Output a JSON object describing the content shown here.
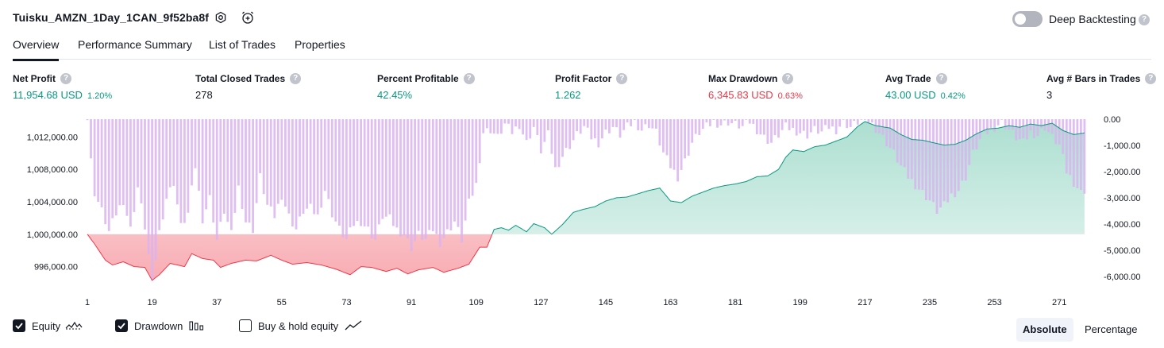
{
  "header": {
    "strategy_name": "Tuisku_AMZN_1Day_1CAN_9f52ba8f",
    "settings_icon": "gear-icon",
    "alert_icon": "alarm-clock-plus-icon",
    "deep_backtesting_label": "Deep Backtesting",
    "deep_backtesting_enabled": false,
    "help_glyph": "?"
  },
  "tabs": [
    {
      "label": "Overview",
      "active": true
    },
    {
      "label": "Performance Summary",
      "active": false
    },
    {
      "label": "List of Trades",
      "active": false
    },
    {
      "label": "Properties",
      "active": false
    }
  ],
  "stats": [
    {
      "label": "Net Profit",
      "value": "11,954.68 USD",
      "percent": "1.20%",
      "color": "#089981"
    },
    {
      "label": "Total Closed Trades",
      "value": "278",
      "percent": "",
      "color": "#131722"
    },
    {
      "label": "Percent Profitable",
      "value": "42.45%",
      "percent": "",
      "color": "#089981"
    },
    {
      "label": "Profit Factor",
      "value": "1.262",
      "percent": "",
      "color": "#089981"
    },
    {
      "label": "Max Drawdown",
      "value": "6,345.83 USD",
      "percent": "0.63%",
      "color": "#f23645"
    },
    {
      "label": "Avg Trade",
      "value": "43.00 USD",
      "percent": "0.42%",
      "color": "#089981"
    },
    {
      "label": "Avg # Bars in Trades",
      "value": "3",
      "percent": "",
      "color": "#131722"
    }
  ],
  "legend": {
    "equity": {
      "label": "Equity",
      "checked": true,
      "icon": "equity-line-icon"
    },
    "drawdown": {
      "label": "Drawdown",
      "checked": true,
      "icon": "drawdown-bars-icon"
    },
    "buy_hold": {
      "label": "Buy & hold equity",
      "checked": false,
      "icon": "trend-line-icon"
    }
  },
  "modes": {
    "absolute": "Absolute",
    "percentage": "Percentage",
    "selected": "absolute"
  },
  "colors": {
    "profit": "#089981",
    "loss": "#f23645",
    "drawdown_bar": "#d9b3f0",
    "equity_fill_top": "#b2e0d4",
    "loss_fill": "#f7b9be"
  },
  "chart_data": {
    "type": "area",
    "x_ticks": [
      "1",
      "19",
      "37",
      "55",
      "73",
      "91",
      "109",
      "127",
      "145",
      "163",
      "181",
      "199",
      "217",
      "235",
      "253",
      "271"
    ],
    "x_range": [
      1,
      280
    ],
    "left_axis": {
      "ticks": [
        "1,012,000.00",
        "1,008,000.00",
        "1,004,000.00",
        "1,000,000.00",
        "996,000.00"
      ],
      "tick_values": [
        1012000,
        1008000,
        1004000,
        1000000,
        996000
      ],
      "range": [
        993800,
        1014200
      ]
    },
    "right_axis": {
      "ticks": [
        "0.00",
        "-1,000.00",
        "-2,000.00",
        "-3,000.00",
        "-4,000.00",
        "-5,000.00",
        "-6,000.00"
      ],
      "tick_values": [
        0,
        -1000,
        -2000,
        -3000,
        -4000,
        -5000,
        -6000
      ],
      "range": [
        -6300,
        0
      ]
    },
    "baseline": 1000000,
    "series": [
      {
        "name": "Equity",
        "keypoints": [
          [
            1,
            1000000
          ],
          [
            3,
            998800
          ],
          [
            6,
            996800
          ],
          [
            8,
            996200
          ],
          [
            11,
            996600
          ],
          [
            14,
            996000
          ],
          [
            17,
            995900
          ],
          [
            19,
            994300
          ],
          [
            21,
            995000
          ],
          [
            24,
            996400
          ],
          [
            28,
            996000
          ],
          [
            30,
            997600
          ],
          [
            33,
            997000
          ],
          [
            36,
            996800
          ],
          [
            38,
            995900
          ],
          [
            41,
            996400
          ],
          [
            45,
            996800
          ],
          [
            48,
            996700
          ],
          [
            52,
            997400
          ],
          [
            55,
            996800
          ],
          [
            58,
            996300
          ],
          [
            62,
            996500
          ],
          [
            66,
            996200
          ],
          [
            70,
            995700
          ],
          [
            74,
            995000
          ],
          [
            77,
            996000
          ],
          [
            80,
            995900
          ],
          [
            84,
            995400
          ],
          [
            87,
            995800
          ],
          [
            90,
            995100
          ],
          [
            93,
            995600
          ],
          [
            97,
            995900
          ],
          [
            100,
            995300
          ],
          [
            104,
            995800
          ],
          [
            107,
            996300
          ],
          [
            110,
            998400
          ],
          [
            112,
            998400
          ],
          [
            114,
            1000600
          ],
          [
            116,
            1000800
          ],
          [
            118,
            1000500
          ],
          [
            120,
            1001100
          ],
          [
            123,
            1000300
          ],
          [
            125,
            1001300
          ],
          [
            128,
            1000800
          ],
          [
            130,
            1000000
          ],
          [
            133,
            1001200
          ],
          [
            136,
            1002700
          ],
          [
            139,
            1003100
          ],
          [
            142,
            1003400
          ],
          [
            145,
            1004100
          ],
          [
            148,
            1004500
          ],
          [
            151,
            1004600
          ],
          [
            154,
            1005000
          ],
          [
            157,
            1005400
          ],
          [
            160,
            1005700
          ],
          [
            163,
            1004100
          ],
          [
            166,
            1003900
          ],
          [
            169,
            1004700
          ],
          [
            172,
            1005200
          ],
          [
            175,
            1005700
          ],
          [
            178,
            1006000
          ],
          [
            181,
            1006200
          ],
          [
            184,
            1006500
          ],
          [
            187,
            1007100
          ],
          [
            190,
            1007200
          ],
          [
            193,
            1008000
          ],
          [
            195,
            1009500
          ],
          [
            197,
            1010400
          ],
          [
            200,
            1010200
          ],
          [
            203,
            1010800
          ],
          [
            206,
            1011000
          ],
          [
            209,
            1011500
          ],
          [
            212,
            1012000
          ],
          [
            215,
            1013300
          ],
          [
            217,
            1013900
          ],
          [
            220,
            1013400
          ],
          [
            224,
            1013100
          ],
          [
            227,
            1012300
          ],
          [
            230,
            1011700
          ],
          [
            233,
            1011600
          ],
          [
            236,
            1011300
          ],
          [
            239,
            1011000
          ],
          [
            242,
            1011100
          ],
          [
            245,
            1011600
          ],
          [
            248,
            1012400
          ],
          [
            251,
            1013000
          ],
          [
            254,
            1013100
          ],
          [
            257,
            1013400
          ],
          [
            260,
            1013200
          ],
          [
            263,
            1013600
          ],
          [
            266,
            1013400
          ],
          [
            269,
            1013700
          ],
          [
            272,
            1012800
          ],
          [
            275,
            1012300
          ],
          [
            278,
            1012500
          ]
        ]
      },
      {
        "name": "Drawdown",
        "keypoints": [
          [
            1,
            0
          ],
          [
            2,
            -1600
          ],
          [
            3,
            -2800
          ],
          [
            5,
            -3500
          ],
          [
            7,
            -4300
          ],
          [
            9,
            -3600
          ],
          [
            11,
            -3100
          ],
          [
            13,
            -4200
          ],
          [
            15,
            -2600
          ],
          [
            17,
            -4100
          ],
          [
            19,
            -6300
          ],
          [
            21,
            -4300
          ],
          [
            23,
            -3000
          ],
          [
            25,
            -2400
          ],
          [
            27,
            -4100
          ],
          [
            29,
            -3600
          ],
          [
            31,
            -1800
          ],
          [
            33,
            -3800
          ],
          [
            35,
            -3000
          ],
          [
            37,
            -4600
          ],
          [
            39,
            -3500
          ],
          [
            41,
            -4400
          ],
          [
            43,
            -2600
          ],
          [
            45,
            -3900
          ],
          [
            47,
            -4200
          ],
          [
            49,
            -2200
          ],
          [
            51,
            -3300
          ],
          [
            53,
            -3700
          ],
          [
            55,
            -2900
          ],
          [
            57,
            -3700
          ],
          [
            59,
            -4200
          ],
          [
            61,
            -3500
          ],
          [
            63,
            -3400
          ],
          [
            65,
            -3700
          ],
          [
            67,
            -2700
          ],
          [
            69,
            -3600
          ],
          [
            71,
            -4200
          ],
          [
            73,
            -4600
          ],
          [
            75,
            -4000
          ],
          [
            77,
            -3900
          ],
          [
            79,
            -4200
          ],
          [
            81,
            -4600
          ],
          [
            83,
            -3700
          ],
          [
            85,
            -3800
          ],
          [
            87,
            -4200
          ],
          [
            89,
            -4400
          ],
          [
            91,
            -4900
          ],
          [
            93,
            -4400
          ],
          [
            95,
            -4600
          ],
          [
            97,
            -4200
          ],
          [
            99,
            -4700
          ],
          [
            101,
            -4300
          ],
          [
            103,
            -3900
          ],
          [
            105,
            -4600
          ],
          [
            107,
            -3200
          ],
          [
            109,
            -2500
          ],
          [
            111,
            -500
          ],
          [
            113,
            -400
          ],
          [
            115,
            -700
          ],
          [
            117,
            -200
          ],
          [
            119,
            -500
          ],
          [
            121,
            -200
          ],
          [
            123,
            -900
          ],
          [
            125,
            -300
          ],
          [
            127,
            -1200
          ],
          [
            129,
            -600
          ],
          [
            131,
            -1900
          ],
          [
            133,
            -1400
          ],
          [
            135,
            -1000
          ],
          [
            137,
            -600
          ],
          [
            139,
            -300
          ],
          [
            141,
            -700
          ],
          [
            143,
            -900
          ],
          [
            145,
            -500
          ],
          [
            147,
            -300
          ],
          [
            149,
            -600
          ],
          [
            151,
            -300
          ],
          [
            153,
            -100
          ],
          [
            155,
            -400
          ],
          [
            157,
            -200
          ],
          [
            159,
            -500
          ],
          [
            161,
            -1300
          ],
          [
            163,
            -1800
          ],
          [
            165,
            -2200
          ],
          [
            167,
            -1600
          ],
          [
            169,
            -900
          ],
          [
            171,
            -500
          ],
          [
            173,
            -300
          ],
          [
            175,
            -100
          ],
          [
            177,
            -200
          ],
          [
            179,
            -100
          ],
          [
            181,
            -200
          ],
          [
            183,
            -300
          ],
          [
            185,
            -100
          ],
          [
            187,
            -400
          ],
          [
            189,
            -700
          ],
          [
            191,
            -900
          ],
          [
            193,
            -600
          ],
          [
            195,
            -300
          ],
          [
            197,
            -400
          ],
          [
            199,
            -500
          ],
          [
            201,
            -600
          ],
          [
            203,
            -400
          ],
          [
            205,
            -500
          ],
          [
            207,
            -300
          ],
          [
            209,
            -400
          ],
          [
            211,
            -100
          ],
          [
            213,
            -300
          ],
          [
            215,
            -100
          ],
          [
            217,
            0
          ],
          [
            219,
            -200
          ],
          [
            221,
            -500
          ],
          [
            223,
            -900
          ],
          [
            225,
            -1300
          ],
          [
            227,
            -1800
          ],
          [
            229,
            -2200
          ],
          [
            231,
            -2500
          ],
          [
            233,
            -2800
          ],
          [
            235,
            -3100
          ],
          [
            237,
            -3500
          ],
          [
            239,
            -3300
          ],
          [
            241,
            -2900
          ],
          [
            243,
            -2700
          ],
          [
            245,
            -2200
          ],
          [
            247,
            -1300
          ],
          [
            249,
            -800
          ],
          [
            251,
            -500
          ],
          [
            253,
            -300
          ],
          [
            255,
            -100
          ],
          [
            257,
            -400
          ],
          [
            259,
            -700
          ],
          [
            261,
            -900
          ],
          [
            263,
            -500
          ],
          [
            265,
            -600
          ],
          [
            267,
            -300
          ],
          [
            269,
            -700
          ],
          [
            271,
            -1000
          ],
          [
            273,
            -2000
          ],
          [
            275,
            -2400
          ],
          [
            277,
            -2800
          ],
          [
            278,
            -2700
          ]
        ]
      }
    ]
  }
}
